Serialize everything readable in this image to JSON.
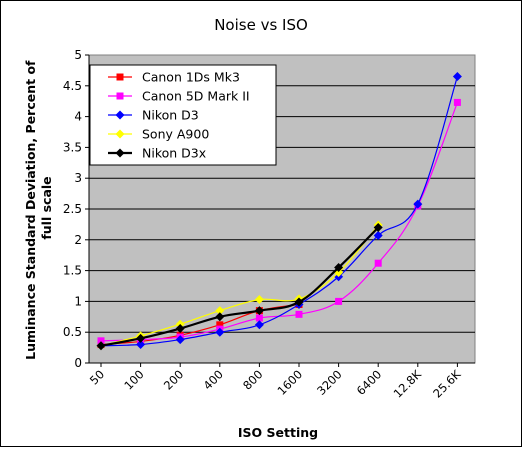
{
  "chart_data": {
    "type": "line",
    "title": "Noise vs ISO",
    "xlabel": "ISO Setting",
    "ylabel": "Luminance Standard Deviation, Percent of full scale",
    "categories": [
      "50",
      "100",
      "200",
      "400",
      "800",
      "1600",
      "3200",
      "6400",
      "12.8K",
      "25.6K"
    ],
    "ylim": [
      0,
      5
    ],
    "yticks": [
      "0",
      "0.5",
      "1",
      "1.5",
      "2",
      "2.5",
      "3",
      "3.5",
      "4",
      "4.5",
      "5"
    ],
    "grid": true,
    "legend_position": "top-left",
    "plot_background": "#c0c0c0",
    "series": [
      {
        "name": "Canon 1Ds Mk3",
        "color": "#ff0000",
        "marker": "square",
        "x": [
          50,
          100,
          200,
          400,
          800,
          1600
        ],
        "y": [
          0.3,
          0.35,
          0.45,
          0.62,
          0.85,
          0.95
        ]
      },
      {
        "name": "Canon 5D Mark II",
        "color": "#ff00ff",
        "marker": "square",
        "x": [
          50,
          100,
          200,
          400,
          800,
          1600,
          3200,
          6400,
          12800,
          25600
        ],
        "y": [
          0.36,
          0.38,
          0.42,
          0.55,
          0.73,
          0.79,
          1.0,
          1.62,
          2.55,
          4.23
        ]
      },
      {
        "name": "Nikon D3",
        "color": "#0000ff",
        "marker": "diamond",
        "x": [
          50,
          100,
          200,
          400,
          800,
          1600,
          3200,
          6400,
          12800,
          25600
        ],
        "y": [
          0.28,
          0.3,
          0.38,
          0.5,
          0.62,
          0.95,
          1.4,
          2.07,
          2.58,
          4.65
        ]
      },
      {
        "name": "Sony A900",
        "color": "#ffff00",
        "marker": "diamond",
        "x": [
          50,
          100,
          200,
          400,
          800,
          1600,
          3200,
          6400
        ],
        "y": [
          0.28,
          0.44,
          0.63,
          0.85,
          1.03,
          1.04,
          1.47,
          2.24
        ]
      },
      {
        "name": "Nikon D3x",
        "color": "#000000",
        "marker": "diamond",
        "x": [
          50,
          100,
          200,
          400,
          800,
          1600,
          3200,
          6400
        ],
        "y": [
          0.28,
          0.4,
          0.56,
          0.75,
          0.85,
          0.99,
          1.55,
          2.2
        ]
      }
    ]
  }
}
